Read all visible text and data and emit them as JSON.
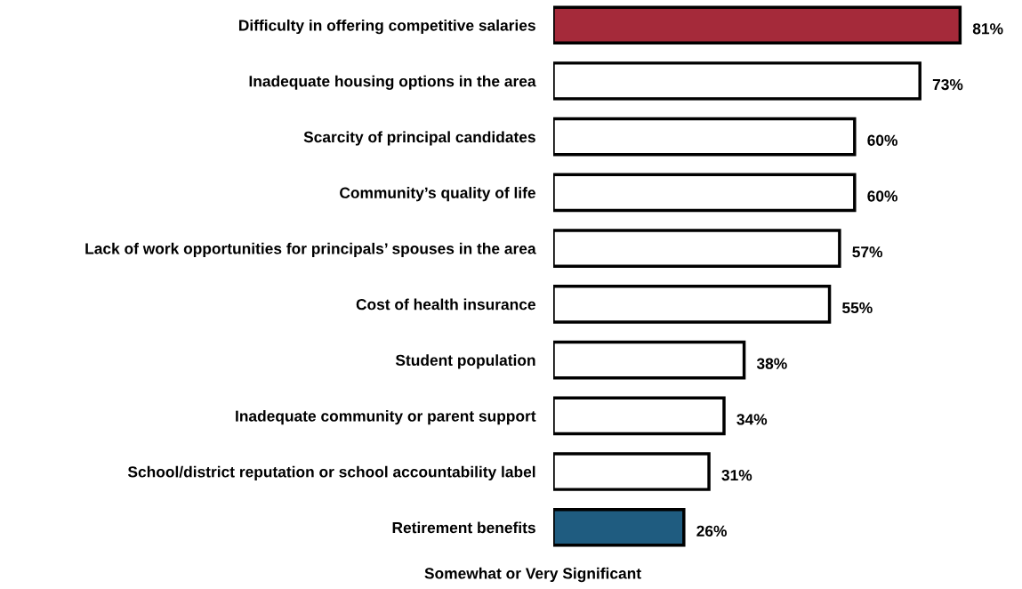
{
  "chart_data": {
    "type": "bar",
    "orientation": "horizontal",
    "categories": [
      "Difficulty in offering competitive salaries",
      "Inadequate housing options in the area",
      "Scarcity of principal candidates",
      "Community’s quality of life",
      "Lack of work opportunities for principals’ spouses in the area",
      "Cost of health insurance",
      "Student population",
      "Inadequate community or parent support",
      "School/district reputation or school accountability label",
      "Retirement benefits"
    ],
    "values": [
      81,
      73,
      60,
      60,
      57,
      55,
      38,
      34,
      31,
      26
    ],
    "value_labels": [
      "81%",
      "73%",
      "60%",
      "60%",
      "57%",
      "55%",
      "38%",
      "34%",
      "31%",
      "26%"
    ],
    "colors": [
      "#a52a3a",
      "#ffffff",
      "#ffffff",
      "#ffffff",
      "#ffffff",
      "#ffffff",
      "#ffffff",
      "#ffffff",
      "#ffffff",
      "#1f5c80"
    ],
    "xlabel": "Somewhat or Very Significant",
    "tick_labels": "y",
    "grid": false,
    "legend": false
  }
}
